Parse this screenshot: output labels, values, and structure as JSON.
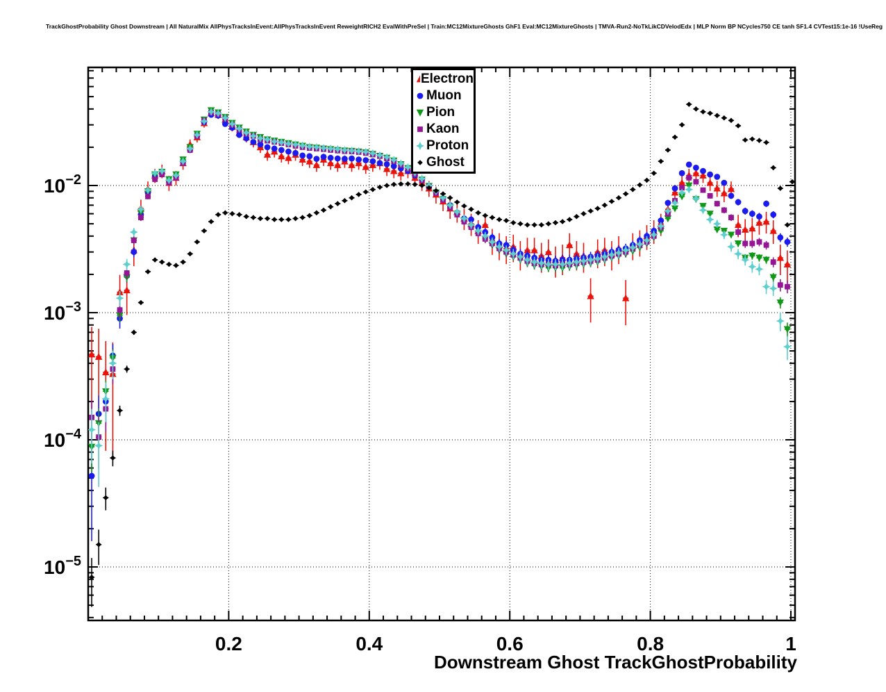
{
  "chart_data": {
    "type": "scatter",
    "title": "TrackGhostProbability Ghost Downstream | All NaturalMix AllPhysTracksInEvent:AllPhysTracksInEvent ReweightRICH2 EvalWithPreSel | Train:MC12MixtureGhosts GhF1 Eval:MC12MixtureGhosts | TMVA-Run2-NoTkLikCDVelodEdx | MLP Norm BP NCycles750 CE tanh SF1.4 CVTest15:1e-16 !UseReg",
    "xlabel": "Downstream Ghost TrackGhostProbability",
    "ylabel": "",
    "yscale": "log",
    "grid": true,
    "legend_position": "top-center",
    "xlim": [
      0,
      1.006
    ],
    "ylim": [
      3.8e-06,
      0.085
    ],
    "x_ticks": [
      0.2,
      0.4,
      0.6,
      0.8,
      1.0
    ],
    "x_tick_labels": [
      "0.2",
      "0.4",
      "0.6",
      "0.8",
      "1"
    ],
    "y_tick_exponents": [
      -2,
      -3,
      -4,
      -5
    ],
    "x_minor_step": 0.02,
    "x_bins": {
      "start": 0.005,
      "step": 0.01,
      "count": 100
    },
    "bin_half_width": 0.005,
    "series": [
      {
        "name": "Electron",
        "color": "#e8140c",
        "marker": "triangle-up",
        "err_coeff": 0.014,
        "y": [
          0.00047,
          0.00045,
          0.00034,
          0.00033,
          0.00145,
          0.0015,
          0.0031,
          0.0066,
          0.0094,
          0.012,
          0.013,
          0.0105,
          0.0115,
          0.015,
          0.021,
          0.024,
          0.031,
          0.037,
          0.036,
          0.033,
          0.029,
          0.026,
          0.024,
          0.022,
          0.02,
          0.0175,
          0.0185,
          0.017,
          0.0165,
          0.0175,
          0.016,
          0.0155,
          0.0145,
          0.016,
          0.015,
          0.0145,
          0.0155,
          0.0145,
          0.015,
          0.014,
          0.0145,
          0.015,
          0.0135,
          0.013,
          0.0125,
          0.013,
          0.0115,
          0.0105,
          0.0095,
          0.0085,
          0.0075,
          0.0066,
          0.0062,
          0.0055,
          0.005,
          0.0044,
          0.0049,
          0.0037,
          0.0034,
          0.0032,
          0.0033,
          0.0029,
          0.0031,
          0.0031,
          0.0028,
          0.003,
          0.0026,
          0.0027,
          0.0034,
          0.0029,
          0.0028,
          0.00135,
          0.003,
          0.0031,
          0.0029,
          0.0032,
          0.0013,
          0.0034,
          0.0036,
          0.004,
          0.0044,
          0.005,
          0.0065,
          0.0088,
          0.0105,
          0.012,
          0.0125,
          0.012,
          0.0105,
          0.0095,
          0.0087,
          0.0094,
          0.0049,
          0.0045,
          0.0046,
          0.0051,
          0.0052,
          0.0044,
          0.0027,
          0.0024
        ]
      },
      {
        "name": "Muon",
        "color": "#1b1bef",
        "marker": "circle",
        "err_coeff": 0.005,
        "y": [
          5.2e-05,
          0.00016,
          0.0002,
          0.00046,
          0.0009,
          0.00195,
          0.003,
          0.0059,
          0.0088,
          0.0118,
          0.0125,
          0.0108,
          0.0118,
          0.0155,
          0.019,
          0.0245,
          0.0315,
          0.036,
          0.0355,
          0.0305,
          0.0285,
          0.025,
          0.0235,
          0.022,
          0.021,
          0.02,
          0.0195,
          0.019,
          0.0185,
          0.018,
          0.0172,
          0.017,
          0.0162,
          0.0168,
          0.0165,
          0.0163,
          0.0162,
          0.0163,
          0.016,
          0.0158,
          0.0155,
          0.015,
          0.0147,
          0.0142,
          0.0136,
          0.013,
          0.012,
          0.011,
          0.0098,
          0.0089,
          0.0079,
          0.007,
          0.0061,
          0.0055,
          0.0054,
          0.0047,
          0.0043,
          0.0039,
          0.0035,
          0.0034,
          0.0031,
          0.0029,
          0.0028,
          0.0027,
          0.0026,
          0.0026,
          0.00255,
          0.0026,
          0.0026,
          0.00265,
          0.0027,
          0.00275,
          0.0028,
          0.0029,
          0.003,
          0.0031,
          0.0032,
          0.0034,
          0.0037,
          0.004,
          0.0044,
          0.0053,
          0.0073,
          0.0095,
          0.0125,
          0.0146,
          0.0138,
          0.013,
          0.0122,
          0.0117,
          0.0105,
          0.0083,
          0.0074,
          0.0063,
          0.006,
          0.0057,
          0.0072,
          0.0059,
          0.0039,
          0.0036
        ]
      },
      {
        "name": "Pion",
        "color": "#0f9818",
        "marker": "triangle-down",
        "err_coeff": 0.0035,
        "y": [
          8.8e-05,
          0.000135,
          0.00024,
          0.00044,
          0.00095,
          0.0019,
          0.0037,
          0.0062,
          0.009,
          0.0122,
          0.0128,
          0.0112,
          0.0122,
          0.016,
          0.02,
          0.0255,
          0.033,
          0.039,
          0.0375,
          0.0345,
          0.031,
          0.0285,
          0.0265,
          0.025,
          0.024,
          0.023,
          0.0225,
          0.022,
          0.0215,
          0.021,
          0.0205,
          0.02,
          0.0198,
          0.0195,
          0.0193,
          0.019,
          0.0188,
          0.0187,
          0.0185,
          0.0182,
          0.0177,
          0.0171,
          0.0165,
          0.0157,
          0.0147,
          0.0137,
          0.0124,
          0.0111,
          0.0099,
          0.0088,
          0.0078,
          0.0068,
          0.006,
          0.0053,
          0.0047,
          0.0042,
          0.0038,
          0.0034,
          0.0031,
          0.0029,
          0.00275,
          0.0026,
          0.00245,
          0.00235,
          0.0023,
          0.00225,
          0.00225,
          0.00225,
          0.0023,
          0.00235,
          0.0024,
          0.00245,
          0.0025,
          0.0026,
          0.0027,
          0.0028,
          0.0029,
          0.00305,
          0.00325,
          0.0035,
          0.0039,
          0.0044,
          0.0055,
          0.0066,
          0.0082,
          0.01,
          0.0078,
          0.0069,
          0.006,
          0.0045,
          0.0044,
          0.0041,
          0.0035,
          0.0027,
          0.0028,
          0.0027,
          0.0026,
          0.0019,
          0.0012,
          0.00074
        ]
      },
      {
        "name": "Kaon",
        "color": "#941694",
        "marker": "square",
        "err_coeff": 0.0045,
        "y": [
          0.00015,
          0.000105,
          0.000175,
          0.00036,
          0.00105,
          0.00205,
          0.0037,
          0.0056,
          0.0082,
          0.0112,
          0.0122,
          0.0105,
          0.0115,
          0.015,
          0.019,
          0.0245,
          0.0325,
          0.0375,
          0.0365,
          0.0335,
          0.03,
          0.0275,
          0.0255,
          0.0245,
          0.023,
          0.0225,
          0.022,
          0.0215,
          0.021,
          0.0205,
          0.02,
          0.0197,
          0.0195,
          0.0193,
          0.019,
          0.0188,
          0.0186,
          0.0185,
          0.0183,
          0.018,
          0.0175,
          0.017,
          0.0163,
          0.0155,
          0.0145,
          0.0135,
          0.0123,
          0.011,
          0.0098,
          0.0087,
          0.0077,
          0.0067,
          0.0059,
          0.0052,
          0.0047,
          0.0042,
          0.0038,
          0.0035,
          0.0032,
          0.003,
          0.00285,
          0.0027,
          0.00255,
          0.00245,
          0.0024,
          0.0024,
          0.00235,
          0.0024,
          0.0024,
          0.00245,
          0.0025,
          0.00255,
          0.0026,
          0.0027,
          0.0028,
          0.0029,
          0.003,
          0.0032,
          0.0034,
          0.0036,
          0.004,
          0.0047,
          0.006,
          0.0076,
          0.0096,
          0.0115,
          0.0107,
          0.0092,
          0.0083,
          0.0072,
          0.0064,
          0.0056,
          0.0043,
          0.0035,
          0.0035,
          0.0036,
          0.0034,
          0.0025,
          0.00165,
          0.0016
        ]
      },
      {
        "name": "Proton",
        "color": "#5dcece",
        "marker": "star4",
        "err_coeff": 0.005,
        "y": [
          0.00012,
          9e-05,
          0.00021,
          0.0004,
          0.0013,
          0.0024,
          0.0043,
          0.0065,
          0.0092,
          0.0125,
          0.013,
          0.011,
          0.012,
          0.0155,
          0.0195,
          0.025,
          0.032,
          0.038,
          0.037,
          0.034,
          0.0305,
          0.028,
          0.026,
          0.0245,
          0.0235,
          0.023,
          0.0222,
          0.0218,
          0.0213,
          0.021,
          0.0206,
          0.0202,
          0.02,
          0.0197,
          0.0195,
          0.0193,
          0.019,
          0.0188,
          0.0186,
          0.0184,
          0.0179,
          0.0173,
          0.0167,
          0.0159,
          0.0149,
          0.0139,
          0.0126,
          0.0113,
          0.01,
          0.009,
          0.008,
          0.007,
          0.0062,
          0.0055,
          0.0049,
          0.0044,
          0.004,
          0.0036,
          0.0033,
          0.0031,
          0.0029,
          0.00275,
          0.0026,
          0.0025,
          0.00245,
          0.0024,
          0.0024,
          0.0024,
          0.00245,
          0.0025,
          0.00255,
          0.0026,
          0.00265,
          0.00275,
          0.00285,
          0.00295,
          0.0031,
          0.00325,
          0.00345,
          0.0037,
          0.0041,
          0.0048,
          0.0063,
          0.0073,
          0.0088,
          0.0093,
          0.0079,
          0.0064,
          0.0054,
          0.005,
          0.0041,
          0.0033,
          0.0029,
          0.0026,
          0.0023,
          0.0022,
          0.0016,
          0.00155,
          0.00086,
          0.00054
        ]
      },
      {
        "name": "Ghost",
        "color": "#000000",
        "marker": "diamond",
        "err_coeff": 0.0012,
        "y": [
          8.3e-06,
          1.5e-05,
          3.5e-05,
          7.2e-05,
          0.00017,
          0.00036,
          0.0007,
          0.0012,
          0.0021,
          0.0026,
          0.0025,
          0.0024,
          0.00235,
          0.0025,
          0.0029,
          0.0036,
          0.0044,
          0.0052,
          0.0059,
          0.0061,
          0.006,
          0.0059,
          0.0057,
          0.0056,
          0.0055,
          0.0055,
          0.0054,
          0.0054,
          0.0054,
          0.0055,
          0.0056,
          0.0058,
          0.0061,
          0.0064,
          0.0068,
          0.0072,
          0.0076,
          0.008,
          0.0085,
          0.0089,
          0.0093,
          0.0097,
          0.01,
          0.0102,
          0.0103,
          0.0103,
          0.0102,
          0.01,
          0.0096,
          0.0091,
          0.0086,
          0.008,
          0.0074,
          0.0069,
          0.0065,
          0.0061,
          0.0058,
          0.0056,
          0.0054,
          0.0053,
          0.0051,
          0.005,
          0.0049,
          0.0049,
          0.0049,
          0.005,
          0.0051,
          0.0052,
          0.0054,
          0.0057,
          0.006,
          0.0063,
          0.0066,
          0.007,
          0.0075,
          0.008,
          0.0086,
          0.0093,
          0.0101,
          0.011,
          0.0125,
          0.0155,
          0.019,
          0.024,
          0.03,
          0.0435,
          0.04,
          0.038,
          0.037,
          0.0355,
          0.034,
          0.0325,
          0.0295,
          0.0228,
          0.0232,
          0.0226,
          0.0218,
          0.0138,
          0.0095,
          0.0049
        ],
        "x_extra": [
          1.002
        ],
        "y_extra": [
          0.0107
        ]
      }
    ]
  }
}
